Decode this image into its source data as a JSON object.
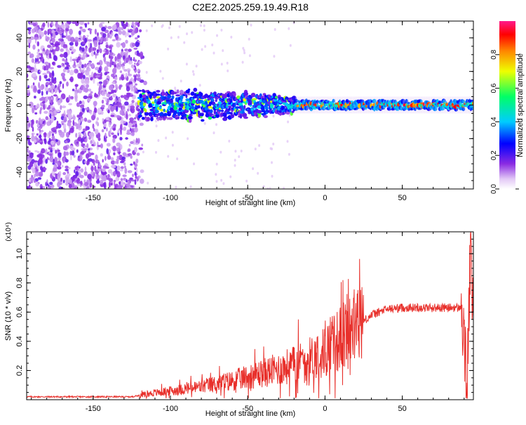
{
  "title": "C2E2.2025.259.19.49.R18",
  "colorbar": {
    "label": "Normalized spectral amplitude",
    "ticks": [
      "0.0",
      "0.2",
      "0.4",
      "0.6",
      "0.8"
    ]
  },
  "chart_data": [
    {
      "type": "heatmap",
      "xlabel": "Height of straight line (km)",
      "ylabel": "Frequency (Hz)",
      "xlim": [
        -193,
        96
      ],
      "ylim": [
        -50,
        50
      ],
      "x_ticks": [
        "-150",
        "-100",
        "-50",
        "0",
        "50"
      ],
      "y_ticks": [
        "-40",
        "-20",
        "0",
        "20",
        "40"
      ],
      "colorbar_range": [
        0,
        1
      ],
      "description_points": {
        "noise_region_x": [
          -193,
          -120
        ],
        "signal_start_x": -120,
        "signal_center_freq_hz": 0
      }
    },
    {
      "type": "line",
      "xlabel": "Height of straight line (km)",
      "ylabel": "SNR (10 * v/v)",
      "y_multiplier": "(x10⁴)",
      "xlim": [
        -193,
        96
      ],
      "ylim": [
        0,
        1.15
      ],
      "x_ticks": [
        "-150",
        "-100",
        "-50",
        "0",
        "50"
      ],
      "y_ticks": [
        "0.2",
        "0.4",
        "0.6",
        "0.8",
        "1.0"
      ],
      "series": [
        {
          "color": "#e8302b",
          "x": [
            -193,
            -150,
            -125,
            -115,
            -100,
            -80,
            -60,
            -45,
            -30,
            -20,
            -10,
            0,
            10,
            20,
            30,
            40,
            50,
            60,
            70,
            80,
            88,
            92,
            94,
            96
          ],
          "y": [
            0.02,
            0.02,
            0.02,
            0.04,
            0.06,
            0.09,
            0.13,
            0.17,
            0.21,
            0.24,
            0.28,
            0.33,
            0.42,
            0.5,
            0.58,
            0.62,
            0.63,
            0.63,
            0.63,
            0.63,
            0.63,
            0.1,
            1.0,
            0.5
          ]
        }
      ]
    }
  ]
}
